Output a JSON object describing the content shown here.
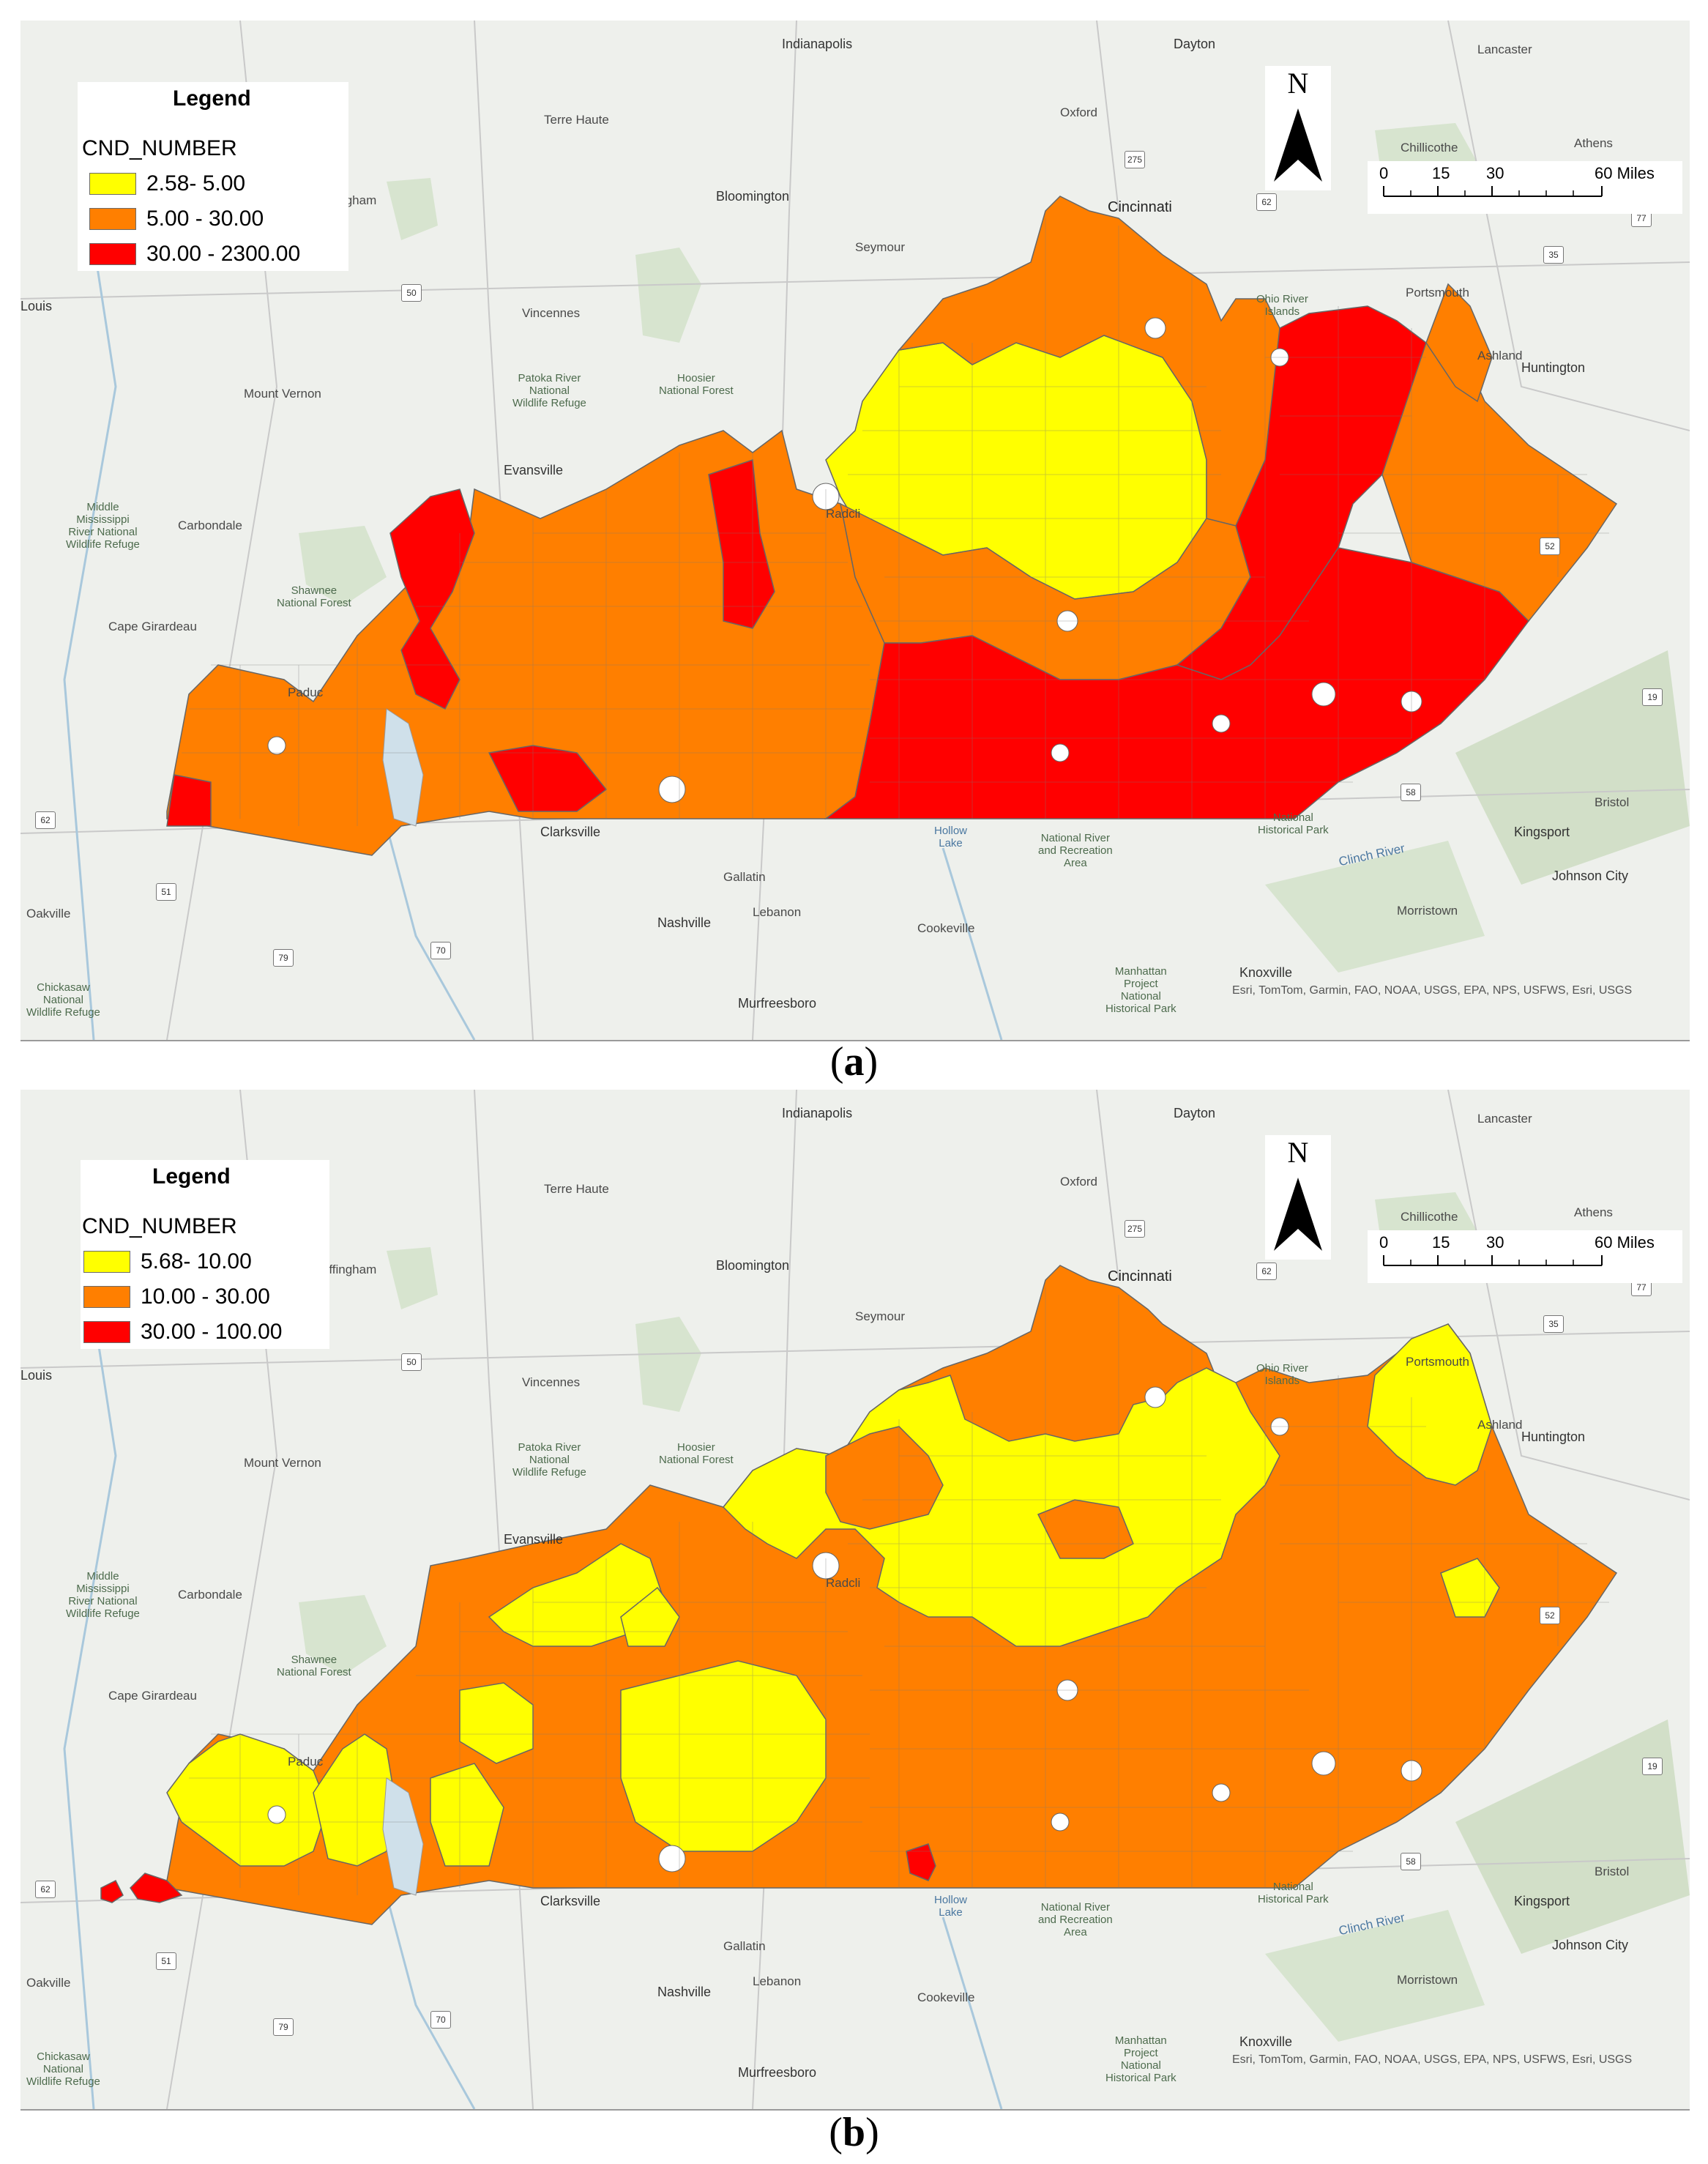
{
  "maps": [
    {
      "id": "a",
      "caption_letter": "a",
      "legend": {
        "title": "Legend",
        "field": "CND_NUMBER",
        "classes": [
          {
            "label": "2.58- 5.00",
            "color": "#ffff00"
          },
          {
            "label": "5.00 - 30.00",
            "color": "#ff7f00"
          },
          {
            "label": "30.00 - 2300.00",
            "color": "#ff0000"
          }
        ]
      }
    },
    {
      "id": "b",
      "caption_letter": "b",
      "legend": {
        "title": "Legend",
        "field": "CND_NUMBER",
        "classes": [
          {
            "label": "5.68- 10.00",
            "color": "#ffff00"
          },
          {
            "label": "10.00 - 30.00",
            "color": "#ff7f00"
          },
          {
            "label": "30.00 - 100.00",
            "color": "#ff0000"
          }
        ]
      }
    }
  ],
  "north_arrow": {
    "letter": "N"
  },
  "scale_bar": {
    "ticks": [
      "0",
      "15",
      "30",
      "60 Miles"
    ]
  },
  "attribution": "Esri, TomTom, Garmin, FAO, NOAA, USGS, EPA, NPS, USFWS, Esri, USGS",
  "place_labels": {
    "indianapolis": "Indianapolis",
    "dayton": "Dayton",
    "lancaster": "Lancaster",
    "terre_haute": "Terre Haute",
    "oxford": "Oxford",
    "effingham": "Effingham",
    "bloomington": "Bloomington",
    "cincinnati": "Cincinnati",
    "chillicothe": "Chillicothe",
    "athens": "Athens",
    "seymour": "Seymour",
    "louis": "Louis",
    "vincennes": "Vincennes",
    "portsmouth": "Portsmouth",
    "ohio_river_islands": "Ohio River\nIslands",
    "ashland": "Ashland",
    "huntington": "Huntington",
    "mount_vernon": "Mount Vernon",
    "patoka": "Patoka River\nNational\nWildlife Refuge",
    "hoosier": "Hoosier\nNational Forest",
    "evansville": "Evansville",
    "middle_mississippi": "Middle\nMississippi\nRiver National\nWildlife Refuge",
    "carbondale": "Carbondale",
    "radcliff": "Radcli",
    "shawnee": "Shawnee\nNational Forest",
    "cape_girardeau": "Cape Girardeau",
    "paducah": "Paduc",
    "clarksville": "Clarksville",
    "hollow_lake": "Hollow\nLake",
    "national_river": "National River\nand Recreation\nArea",
    "national_hist_park": "National\nHistorical Park",
    "clinch_river": "Clinch River",
    "kingsport": "Kingsport",
    "bristol": "Bristol",
    "gallatin": "Gallatin",
    "johnson_city": "Johnson City",
    "oakville": "Oakville",
    "lebanon": "Lebanon",
    "nashville": "Nashville",
    "cookeville": "Cookeville",
    "morristown": "Morristown",
    "knoxville": "Knoxville",
    "manhattan": "Manhattan\nProject\nNational\nHistorical Park",
    "chickasaw": "Chickasaw\nNational\nWildlife Refuge",
    "murfreesboro": "Murfreesboro",
    "lou": "Lo"
  },
  "highway_shields": [
    "275",
    "62",
    "35",
    "77",
    "50",
    "52",
    "19",
    "58",
    "62",
    "51",
    "79",
    "70"
  ]
}
